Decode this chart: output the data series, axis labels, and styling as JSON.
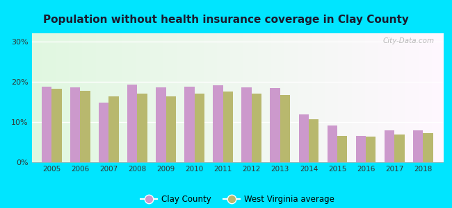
{
  "title": "Population without health insurance coverage in Clay County",
  "years": [
    2005,
    2006,
    2007,
    2008,
    2009,
    2010,
    2011,
    2012,
    2013,
    2014,
    2015,
    2016,
    2017,
    2018
  ],
  "clay_county": [
    18.8,
    18.6,
    14.8,
    19.2,
    18.5,
    18.7,
    19.1,
    18.6,
    18.4,
    11.8,
    9.2,
    6.6,
    8.0,
    7.9
  ],
  "wv_average": [
    18.3,
    17.8,
    16.3,
    17.0,
    16.4,
    17.0,
    17.5,
    17.0,
    16.7,
    10.7,
    6.5,
    6.3,
    6.8,
    7.3
  ],
  "clay_color": "#cc99cc",
  "wv_color": "#b8b86e",
  "background_fig": "#00e5ff",
  "yticks": [
    0,
    10,
    20,
    30
  ],
  "ylim": [
    0,
    32
  ],
  "bar_width": 0.35,
  "watermark": "City-Data.com",
  "legend_clay": "Clay County",
  "legend_wv": "West Virginia average",
  "title_color": "#1a1a2e"
}
